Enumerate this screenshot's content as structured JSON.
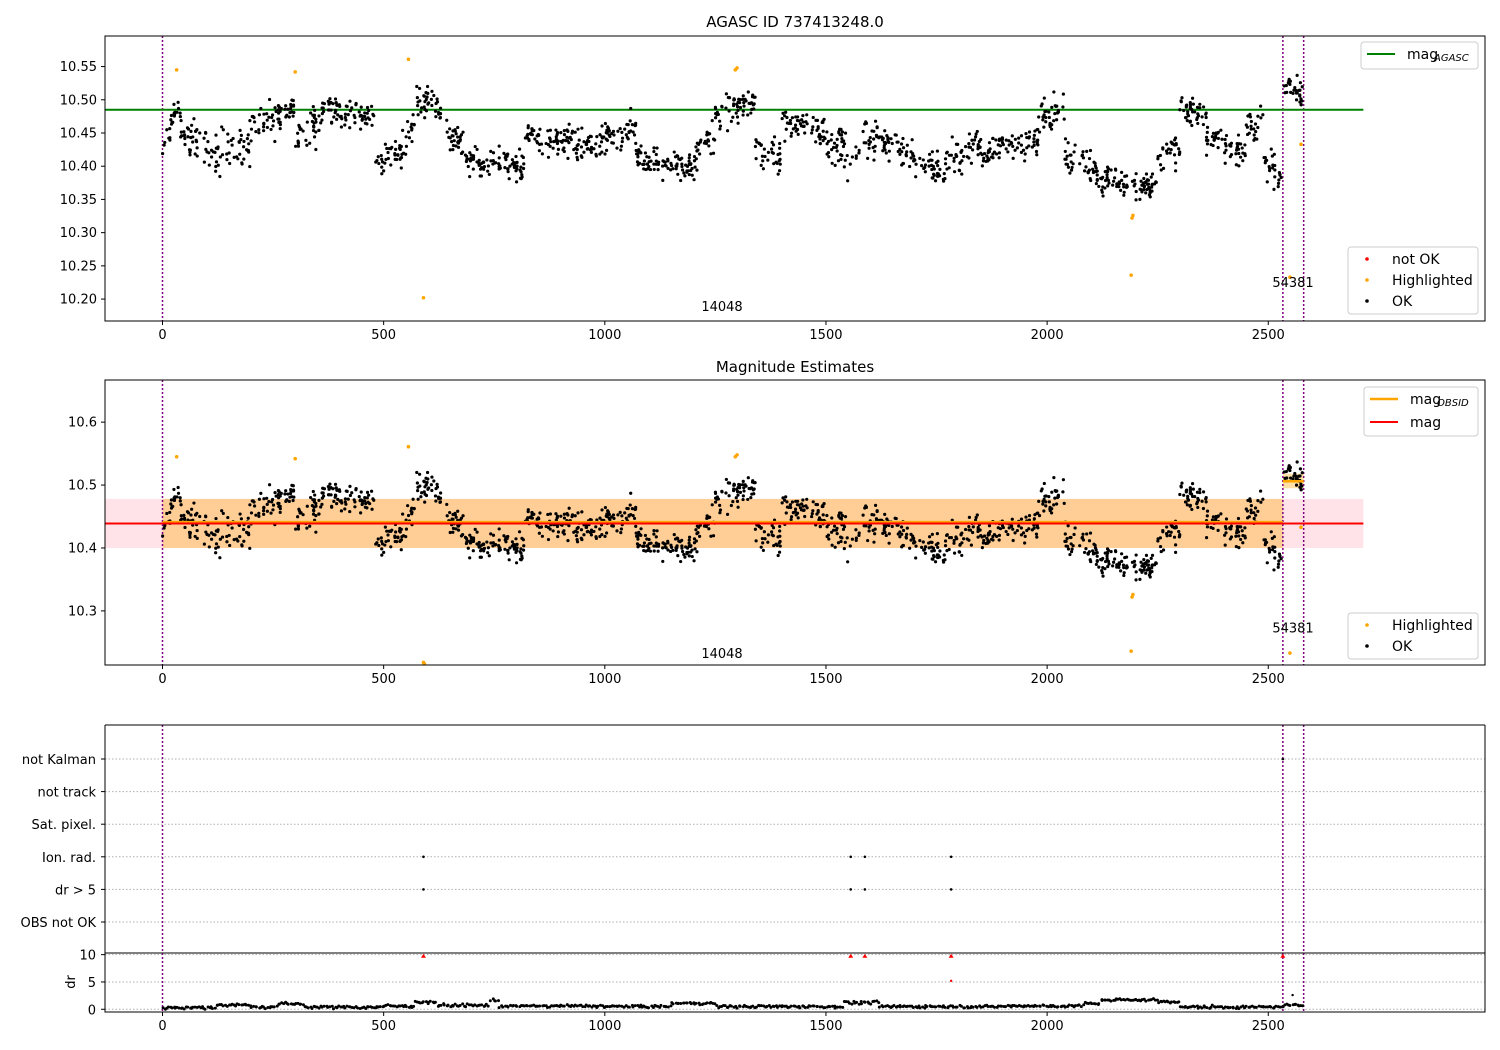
{
  "figure": {
    "titles": [
      "AGASC ID 737413248.0",
      "Magnitude Estimates"
    ]
  },
  "colors": {
    "ok": "#000000",
    "highlighted": "#ffa500",
    "not_ok": "#ff0000",
    "mag_agasc": "#008000",
    "mag": "#ff0000",
    "mag_obsid": "#ffa500",
    "obsid_line": "#800080",
    "band": "#ffc0cb",
    "band_alpha": 0.45,
    "band_obs_alpha": 0.35,
    "grid": "#b0b0b0"
  },
  "chart_data": [
    {
      "type": "scatter",
      "title": "AGASC ID 737413248.0",
      "xlim": [
        -130,
        2990
      ],
      "ylim": [
        10.167,
        10.596
      ],
      "xticks": [
        0,
        500,
        1000,
        1500,
        2000,
        2500
      ],
      "yticks": [
        10.2,
        10.25,
        10.3,
        10.35,
        10.4,
        10.45,
        10.5,
        10.55
      ],
      "ytick_labels": [
        "10.20",
        "10.25",
        "10.30",
        "10.35",
        "10.40",
        "10.45",
        "10.50",
        "10.55"
      ],
      "legend": [
        "mag_AGASC",
        "not OK",
        "Highlighted",
        "OK"
      ],
      "legend_entries": [
        {
          "label": "not OK",
          "kind": "dot",
          "color": "#ff0000"
        },
        {
          "label": "Highlighted",
          "kind": "dot",
          "color": "#ffa500"
        },
        {
          "label": "OK",
          "kind": "dot",
          "color": "#000000"
        }
      ],
      "mag_agasc_legend": {
        "main": "mag",
        "sub": "AGASC"
      },
      "mag_agasc": 10.485,
      "mag_agasc_xrange": [
        -130,
        2715
      ],
      "obsid_boundaries": [
        0,
        2533,
        2580
      ],
      "obsid_labels": [
        {
          "text": "14048",
          "x": 1265,
          "y": 10.182
        },
        {
          "text": "54381",
          "x": 2556,
          "y": 10.218
        }
      ],
      "ok_segments": [
        {
          "x0": 0,
          "x1": 40,
          "y0": 10.43,
          "y1": 10.49,
          "n": 22,
          "sd": 0.022
        },
        {
          "x0": 40,
          "x1": 120,
          "y0": 10.45,
          "y1": 10.42,
          "n": 45,
          "sd": 0.02
        },
        {
          "x0": 120,
          "x1": 200,
          "y0": 10.42,
          "y1": 10.43,
          "n": 45,
          "sd": 0.025
        },
        {
          "x0": 200,
          "x1": 300,
          "y0": 10.46,
          "y1": 10.49,
          "n": 60,
          "sd": 0.018
        },
        {
          "x0": 300,
          "x1": 360,
          "y0": 10.44,
          "y1": 10.47,
          "n": 35,
          "sd": 0.022
        },
        {
          "x0": 360,
          "x1": 480,
          "y0": 10.49,
          "y1": 10.47,
          "n": 75,
          "sd": 0.017
        },
        {
          "x0": 480,
          "x1": 540,
          "y0": 10.41,
          "y1": 10.42,
          "n": 35,
          "sd": 0.018
        },
        {
          "x0": 540,
          "x1": 570,
          "y0": 10.43,
          "y1": 10.46,
          "n": 18,
          "sd": 0.02
        },
        {
          "x0": 570,
          "x1": 630,
          "y0": 10.5,
          "y1": 10.48,
          "n": 40,
          "sd": 0.018
        },
        {
          "x0": 630,
          "x1": 680,
          "y0": 10.46,
          "y1": 10.43,
          "n": 30,
          "sd": 0.016
        },
        {
          "x0": 680,
          "x1": 820,
          "y0": 10.41,
          "y1": 10.4,
          "n": 90,
          "sd": 0.016
        },
        {
          "x0": 820,
          "x1": 960,
          "y0": 10.45,
          "y1": 10.43,
          "n": 90,
          "sd": 0.016
        },
        {
          "x0": 960,
          "x1": 1070,
          "y0": 10.43,
          "y1": 10.46,
          "n": 70,
          "sd": 0.016
        },
        {
          "x0": 1070,
          "x1": 1200,
          "y0": 10.41,
          "y1": 10.4,
          "n": 85,
          "sd": 0.016
        },
        {
          "x0": 1200,
          "x1": 1250,
          "y0": 10.41,
          "y1": 10.45,
          "n": 30,
          "sd": 0.02
        },
        {
          "x0": 1250,
          "x1": 1340,
          "y0": 10.48,
          "y1": 10.5,
          "n": 60,
          "sd": 0.018
        },
        {
          "x0": 1340,
          "x1": 1400,
          "y0": 10.43,
          "y1": 10.41,
          "n": 35,
          "sd": 0.018
        },
        {
          "x0": 1400,
          "x1": 1500,
          "y0": 10.47,
          "y1": 10.45,
          "n": 60,
          "sd": 0.017
        },
        {
          "x0": 1500,
          "x1": 1580,
          "y0": 10.44,
          "y1": 10.42,
          "n": 45,
          "sd": 0.022
        },
        {
          "x0": 1580,
          "x1": 1700,
          "y0": 10.45,
          "y1": 10.42,
          "n": 75,
          "sd": 0.018
        },
        {
          "x0": 1700,
          "x1": 1770,
          "y0": 10.4,
          "y1": 10.39,
          "n": 40,
          "sd": 0.018
        },
        {
          "x0": 1770,
          "x1": 1850,
          "y0": 10.41,
          "y1": 10.43,
          "n": 50,
          "sd": 0.017
        },
        {
          "x0": 1850,
          "x1": 1980,
          "y0": 10.42,
          "y1": 10.44,
          "n": 80,
          "sd": 0.017
        },
        {
          "x0": 1980,
          "x1": 2040,
          "y0": 10.47,
          "y1": 10.49,
          "n": 35,
          "sd": 0.018
        },
        {
          "x0": 2040,
          "x1": 2110,
          "y0": 10.41,
          "y1": 10.4,
          "n": 40,
          "sd": 0.02
        },
        {
          "x0": 2110,
          "x1": 2250,
          "y0": 10.38,
          "y1": 10.37,
          "n": 95,
          "sd": 0.015
        },
        {
          "x0": 2250,
          "x1": 2300,
          "y0": 10.41,
          "y1": 10.43,
          "n": 30,
          "sd": 0.018
        },
        {
          "x0": 2300,
          "x1": 2360,
          "y0": 10.49,
          "y1": 10.48,
          "n": 40,
          "sd": 0.016
        },
        {
          "x0": 2360,
          "x1": 2450,
          "y0": 10.44,
          "y1": 10.42,
          "n": 55,
          "sd": 0.016
        },
        {
          "x0": 2450,
          "x1": 2490,
          "y0": 10.46,
          "y1": 10.47,
          "n": 22,
          "sd": 0.017
        },
        {
          "x0": 2490,
          "x1": 2532,
          "y0": 10.41,
          "y1": 10.38,
          "n": 25,
          "sd": 0.018
        },
        {
          "x0": 2536,
          "x1": 2578,
          "y0": 10.52,
          "y1": 10.51,
          "n": 30,
          "sd": 0.018
        }
      ],
      "highlighted_points": [
        [
          32,
          10.545
        ],
        [
          300,
          10.542
        ],
        [
          556,
          10.561
        ],
        [
          590,
          10.202
        ],
        [
          1295,
          10.545
        ],
        [
          1299,
          10.548
        ],
        [
          2190,
          10.236
        ],
        [
          2192,
          10.322
        ],
        [
          2194,
          10.326
        ],
        [
          2549,
          10.233
        ],
        [
          2574,
          10.433
        ]
      ],
      "not_ok_points": []
    },
    {
      "type": "scatter",
      "title": "Magnitude Estimates",
      "xlim": [
        -130,
        2990
      ],
      "ylim": [
        10.214,
        10.667
      ],
      "xticks": [
        0,
        500,
        1000,
        1500,
        2000,
        2500
      ],
      "yticks": [
        10.3,
        10.4,
        10.5,
        10.6
      ],
      "ytick_labels": [
        "10.3",
        "10.4",
        "10.5",
        "10.6"
      ],
      "legend": [
        "mag_OBSID",
        "mag",
        "Highlighted",
        "OK"
      ],
      "legend_entries": [
        {
          "label": "Highlighted",
          "kind": "dot",
          "color": "#ffa500"
        },
        {
          "label": "OK",
          "kind": "dot",
          "color": "#000000"
        }
      ],
      "mag_obsid_legend": {
        "main": "mag",
        "sub": "OBSID"
      },
      "mag_label": "mag",
      "mag": 10.439,
      "mag_band": [
        10.4,
        10.478
      ],
      "mag_xrange": [
        -130,
        2715
      ],
      "obsid_mags": [
        {
          "x0": 0,
          "x1": 2533,
          "mag": 10.441,
          "band": [
            10.4,
            10.478
          ]
        },
        {
          "x0": 2533,
          "x1": 2580,
          "mag": 10.506,
          "band": [
            10.495,
            10.518
          ]
        }
      ],
      "obsid_boundaries": [
        0,
        2533,
        2580
      ],
      "obsid_labels": [
        {
          "text": "14048",
          "x": 1265,
          "y": 10.225
        },
        {
          "text": "54381",
          "x": 2556,
          "y": 10.266
        }
      ],
      "highlighted_points": [
        [
          32,
          10.545
        ],
        [
          300,
          10.542
        ],
        [
          556,
          10.561
        ],
        [
          590,
          10.218
        ],
        [
          592,
          10.216
        ],
        [
          1295,
          10.545
        ],
        [
          1299,
          10.548
        ],
        [
          2190,
          10.236
        ],
        [
          2192,
          10.322
        ],
        [
          2194,
          10.326
        ],
        [
          2549,
          10.233
        ],
        [
          2574,
          10.433
        ]
      ]
    },
    {
      "type": "scatter",
      "title": "",
      "xlim": [
        -130,
        2990
      ],
      "flag_rows": [
        "not Kalman",
        "not track",
        "Sat. pixel.",
        "Ion. rad.",
        "dr > 5",
        "OBS not OK"
      ],
      "flag_points": [
        {
          "row": "not Kalman",
          "x": [
            2533
          ]
        },
        {
          "row": "Ion. rad.",
          "x": [
            590,
            1556,
            1588,
            1783
          ]
        },
        {
          "row": "dr > 5",
          "x": [
            590,
            1556,
            1588,
            1783
          ]
        }
      ],
      "dr": {
        "ylabel": "dr",
        "ylim": [
          -0.5,
          10.3
        ],
        "yticks": [
          0,
          5,
          10
        ],
        "xticks": [
          0,
          500,
          1000,
          1500,
          2000,
          2500
        ],
        "clipped_points": [
          590,
          1556,
          1588,
          1783,
          2533
        ],
        "extra_points": [
          [
            1783,
            5.2
          ],
          [
            2555,
            2.6
          ]
        ],
        "baseline_segments": [
          {
            "x0": 0,
            "x1": 120,
            "y": 0.3
          },
          {
            "x0": 120,
            "x1": 200,
            "y": 0.8
          },
          {
            "x0": 200,
            "x1": 260,
            "y": 0.4
          },
          {
            "x0": 260,
            "x1": 320,
            "y": 1.0
          },
          {
            "x0": 320,
            "x1": 500,
            "y": 0.4
          },
          {
            "x0": 500,
            "x1": 570,
            "y": 0.6
          },
          {
            "x0": 570,
            "x1": 620,
            "y": 1.3
          },
          {
            "x0": 620,
            "x1": 740,
            "y": 0.7
          },
          {
            "x0": 740,
            "x1": 760,
            "y": 1.6
          },
          {
            "x0": 760,
            "x1": 1000,
            "y": 0.6
          },
          {
            "x0": 1000,
            "x1": 1150,
            "y": 0.5
          },
          {
            "x0": 1150,
            "x1": 1250,
            "y": 1.1
          },
          {
            "x0": 1250,
            "x1": 1540,
            "y": 0.5
          },
          {
            "x0": 1540,
            "x1": 1620,
            "y": 1.2
          },
          {
            "x0": 1620,
            "x1": 1900,
            "y": 0.5
          },
          {
            "x0": 1900,
            "x1": 2080,
            "y": 0.6
          },
          {
            "x0": 2080,
            "x1": 2120,
            "y": 1.0
          },
          {
            "x0": 2120,
            "x1": 2250,
            "y": 1.7
          },
          {
            "x0": 2250,
            "x1": 2300,
            "y": 1.4
          },
          {
            "x0": 2300,
            "x1": 2533,
            "y": 0.4
          },
          {
            "x0": 2533,
            "x1": 2580,
            "y": 0.7
          }
        ]
      }
    }
  ]
}
